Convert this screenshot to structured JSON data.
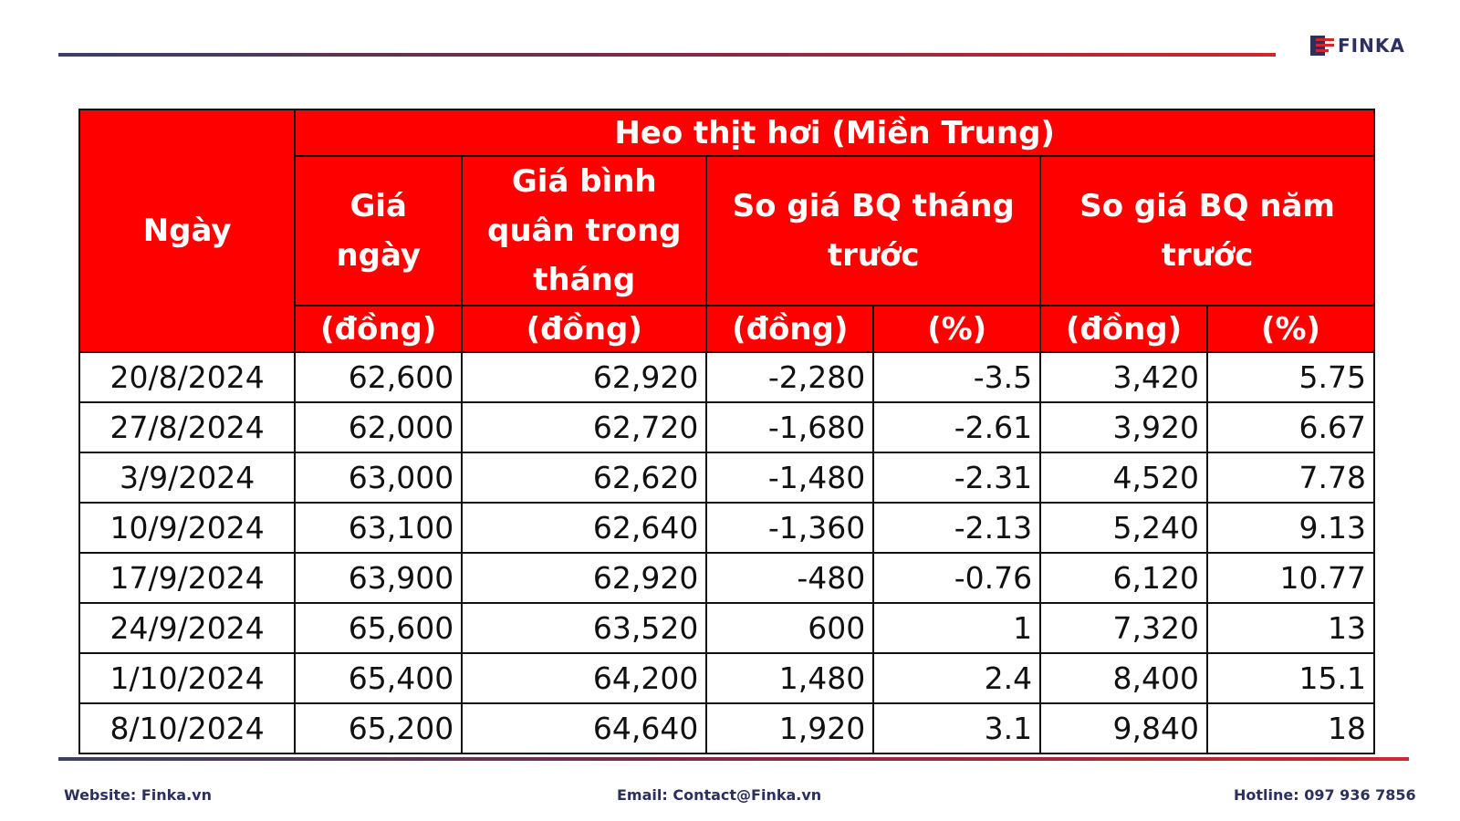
{
  "brand": {
    "logo_text": "FINKA",
    "accent_red": "#ff0000",
    "navy": "#2b3060"
  },
  "table": {
    "group_title": "Heo thịt hơi (Miền Trung)",
    "headers": {
      "date": "Ngày",
      "daily_price": "Giá ngày",
      "monthly_avg": "Giá bình quân trong tháng",
      "vs_prev_month": "So giá BQ tháng trước",
      "vs_prev_year": "So giá BQ năm trước"
    },
    "units": {
      "daily_price": "(đồng)",
      "monthly_avg": "(đồng)",
      "prev_month_dong": "(đồng)",
      "prev_month_pct": "(%)",
      "prev_year_dong": "(đồng)",
      "prev_year_pct": "(%)"
    },
    "rows": [
      {
        "date": "20/8/2024",
        "daily": "62,600",
        "avg": "62,920",
        "pm_dong": "-2,280",
        "pm_pct": "-3.5",
        "py_dong": "3,420",
        "py_pct": "5.75"
      },
      {
        "date": "27/8/2024",
        "daily": "62,000",
        "avg": "62,720",
        "pm_dong": "-1,680",
        "pm_pct": "-2.61",
        "py_dong": "3,920",
        "py_pct": "6.67"
      },
      {
        "date": "3/9/2024",
        "daily": "63,000",
        "avg": "62,620",
        "pm_dong": "-1,480",
        "pm_pct": "-2.31",
        "py_dong": "4,520",
        "py_pct": "7.78"
      },
      {
        "date": "10/9/2024",
        "daily": "63,100",
        "avg": "62,640",
        "pm_dong": "-1,360",
        "pm_pct": "-2.13",
        "py_dong": "5,240",
        "py_pct": "9.13"
      },
      {
        "date": "17/9/2024",
        "daily": "63,900",
        "avg": "62,920",
        "pm_dong": "-480",
        "pm_pct": "-0.76",
        "py_dong": "6,120",
        "py_pct": "10.77"
      },
      {
        "date": "24/9/2024",
        "daily": "65,600",
        "avg": "63,520",
        "pm_dong": "600",
        "pm_pct": "1",
        "py_dong": "7,320",
        "py_pct": "13"
      },
      {
        "date": "1/10/2024",
        "daily": "65,400",
        "avg": "64,200",
        "pm_dong": "1,480",
        "pm_pct": "2.4",
        "py_dong": "8,400",
        "py_pct": "15.1"
      },
      {
        "date": "8/10/2024",
        "daily": "65,200",
        "avg": "64,640",
        "pm_dong": "1,920",
        "pm_pct": "3.1",
        "py_dong": "9,840",
        "py_pct": "18"
      }
    ]
  },
  "footer": {
    "website": "Website: Finka.vn",
    "email": "Email: Contact@Finka.vn",
    "hotline": "Hotline: 097 936 7856"
  }
}
